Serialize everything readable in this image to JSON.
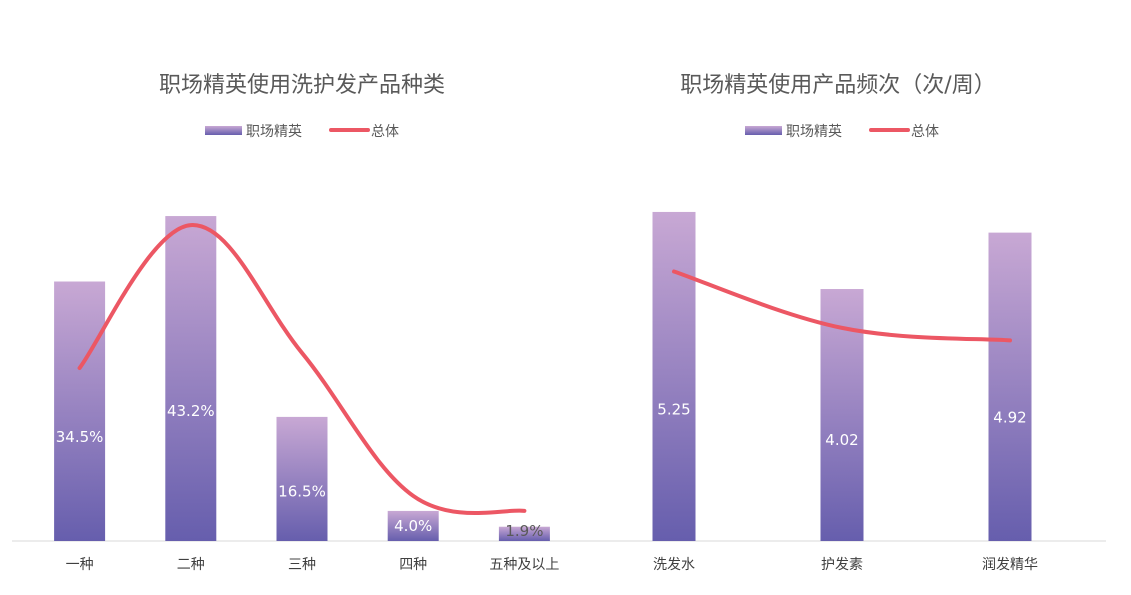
{
  "chart_data": [
    {
      "type": "bar",
      "title": "职场精英使用洗护发产品种类",
      "categories": [
        "一种",
        "二种",
        "三种",
        "四种",
        "五种及以上"
      ],
      "series": [
        {
          "name": "职场精英",
          "type": "bar",
          "values": [
            34.5,
            43.2,
            16.5,
            4.0,
            1.9
          ],
          "labels": [
            "34.5%",
            "43.2%",
            "16.5%",
            "4.0%",
            "1.9%"
          ]
        },
        {
          "name": "总体",
          "type": "line",
          "values": [
            23,
            42,
            25,
            6,
            4
          ]
        }
      ],
      "ylim": [
        0,
        46
      ],
      "legend_position": "top-center",
      "grid": false,
      "colors": {
        "bar_top": "#c8a8d4",
        "bar_bottom": "#665ead",
        "line": "#ec5764"
      }
    },
    {
      "type": "bar",
      "title": "职场精英使用产品频次（次/周）",
      "categories": [
        "洗发水",
        "护发素",
        "润发精华"
      ],
      "series": [
        {
          "name": "职场精英",
          "type": "bar",
          "values": [
            5.25,
            4.02,
            4.92
          ],
          "labels": [
            "5.25",
            "4.02",
            "4.92"
          ]
        },
        {
          "name": "总体",
          "type": "line",
          "values": [
            4.3,
            3.4,
            3.2
          ]
        }
      ],
      "ylim": [
        0,
        5.6
      ],
      "legend_position": "top-center",
      "grid": false,
      "colors": {
        "bar_top": "#c8a8d4",
        "bar_bottom": "#665ead",
        "line": "#ec5764"
      }
    }
  ]
}
